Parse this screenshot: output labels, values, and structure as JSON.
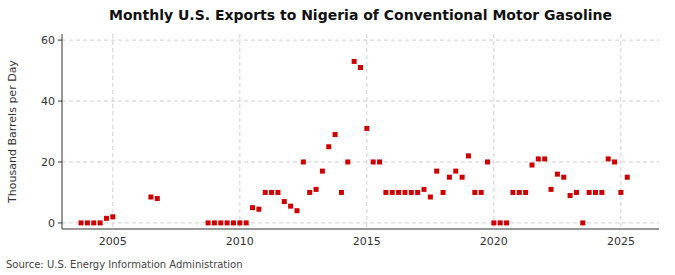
{
  "chart_data": {
    "type": "scatter",
    "title": "Monthly U.S. Exports to Nigeria of Conventional Motor Gasoline",
    "y_label": "Thousand Barrels per Day",
    "source": "Source: U.S. Energy Information Administration",
    "color": "#cc0000",
    "marker": "square",
    "grid": true,
    "xlim": [
      2003.0,
      2026.5
    ],
    "ylim": [
      -2,
      62
    ],
    "xticks": [
      2005,
      2010,
      2015,
      2020,
      2025
    ],
    "yticks": [
      0,
      20,
      40,
      60
    ],
    "x": [
      2003.75,
      2004.0,
      2004.25,
      2004.5,
      2004.75,
      2005.0,
      2006.5,
      2006.75,
      2008.75,
      2009.0,
      2009.25,
      2009.5,
      2009.75,
      2010.0,
      2010.25,
      2010.5,
      2010.75,
      2011.0,
      2011.25,
      2011.5,
      2011.75,
      2012.0,
      2012.25,
      2012.5,
      2012.75,
      2013.0,
      2013.25,
      2013.5,
      2013.75,
      2014.0,
      2014.25,
      2014.5,
      2014.75,
      2015.0,
      2015.25,
      2015.5,
      2015.75,
      2016.0,
      2016.25,
      2016.5,
      2016.75,
      2017.0,
      2017.25,
      2017.5,
      2017.75,
      2018.0,
      2018.25,
      2018.5,
      2018.75,
      2019.0,
      2019.25,
      2019.5,
      2019.75,
      2020.0,
      2020.25,
      2020.5,
      2020.75,
      2021.0,
      2021.25,
      2021.5,
      2021.75,
      2022.0,
      2022.25,
      2022.5,
      2022.75,
      2023.0,
      2023.25,
      2023.5,
      2023.75,
      2024.0,
      2024.25,
      2024.5,
      2024.75,
      2025.0,
      2025.25
    ],
    "values": [
      0,
      0,
      0,
      0,
      1.5,
      2.0,
      8.5,
      8.0,
      0,
      0,
      0,
      0,
      0,
      0,
      0,
      5.0,
      4.5,
      10.0,
      10.0,
      10.0,
      7.0,
      5.5,
      4.0,
      20.0,
      10.0,
      11.0,
      17.0,
      25.0,
      29.0,
      10.0,
      20.0,
      53.0,
      51.0,
      31.0,
      20.0,
      20.0,
      10.0,
      10.0,
      10.0,
      10.0,
      10.0,
      10.0,
      11.0,
      8.5,
      17.0,
      10.0,
      15.0,
      17.0,
      15.0,
      22.0,
      10.0,
      10.0,
      20.0,
      0,
      0,
      0,
      10.0,
      10.0,
      10.0,
      19.0,
      21.0,
      21.0,
      11.0,
      16.0,
      15.0,
      9.0,
      10.0,
      0,
      10.0,
      10.0,
      10.0,
      21.0,
      20.0,
      10.0,
      15.0
    ]
  }
}
